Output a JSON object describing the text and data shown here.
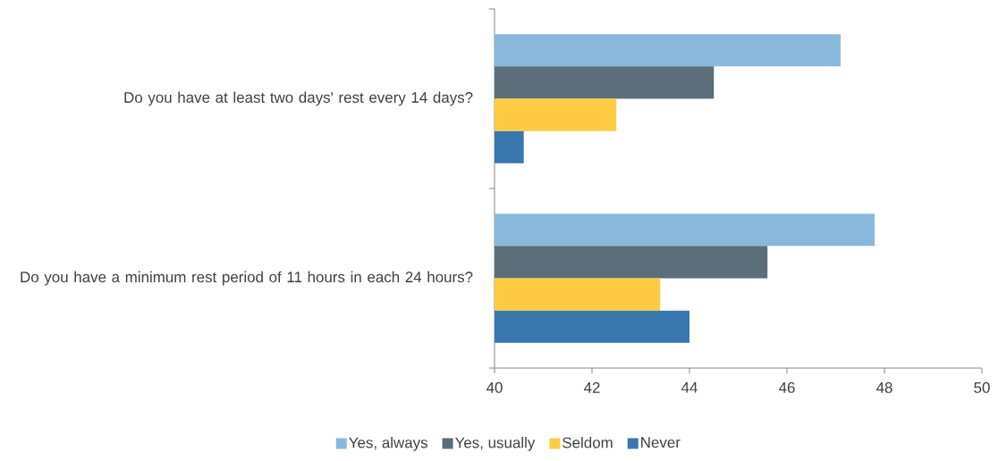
{
  "chart_data": {
    "type": "bar",
    "orientation": "horizontal",
    "categories": [
      "Do you have at least two days' rest every 14 days?",
      "Do you have a minimum rest period of 11 hours in each 24 hours?"
    ],
    "series": [
      {
        "name": "Yes, always",
        "color": "#88b9dd",
        "values": [
          47.1,
          47.8
        ]
      },
      {
        "name": "Yes, usually",
        "color": "#5b6e7a",
        "values": [
          44.5,
          45.6
        ]
      },
      {
        "name": "Seldom",
        "color": "#ffcc44",
        "values": [
          42.5,
          43.4
        ]
      },
      {
        "name": "Never",
        "color": "#3878ae",
        "values": [
          40.6,
          44.0
        ]
      }
    ],
    "xlim": [
      40,
      50
    ],
    "xticks": [
      40,
      42,
      44,
      46,
      48,
      50
    ],
    "legend": "bottom"
  }
}
